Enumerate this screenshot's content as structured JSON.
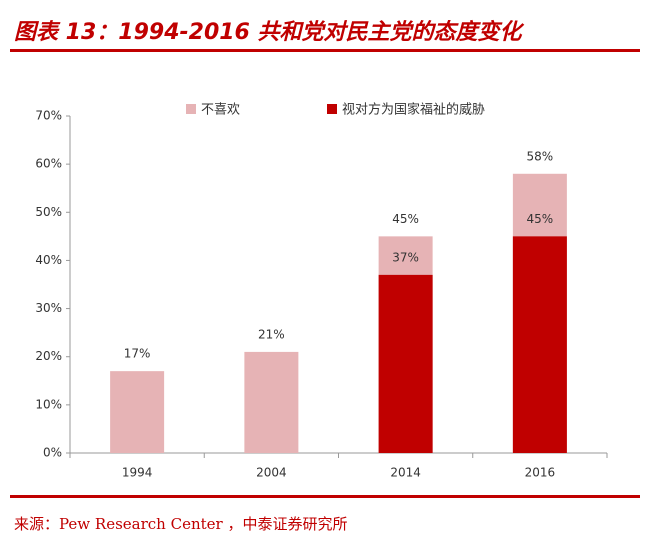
{
  "chart_data": {
    "type": "bar",
    "title": "图表 13：1994-2016 共和党对民主党的态度变化",
    "source": "来源：Pew Research Center ，中泰证券研究所",
    "categories": [
      "1994",
      "2004",
      "2014",
      "2016"
    ],
    "series": [
      {
        "name": "不喜欢",
        "color": "#e6b3b5",
        "values": [
          17,
          21,
          45,
          58
        ],
        "value_labels": [
          "17%",
          "21%",
          "45%",
          "58%"
        ]
      },
      {
        "name": "视对方为国家福祉的威胁",
        "color": "#c00000",
        "values": [
          null,
          null,
          37,
          45
        ],
        "value_labels": [
          null,
          null,
          "37%",
          "45%"
        ]
      }
    ],
    "ylim": [
      0,
      70
    ],
    "yticks": [
      {
        "value": 0,
        "label": "0%"
      },
      {
        "value": 10,
        "label": "10%"
      },
      {
        "value": 20,
        "label": "20%"
      },
      {
        "value": 30,
        "label": "30%"
      },
      {
        "value": 40,
        "label": "40%"
      },
      {
        "value": 50,
        "label": "50%"
      },
      {
        "value": 60,
        "label": "60%"
      },
      {
        "value": 70,
        "label": "70%"
      }
    ],
    "grid": false,
    "overlap": true
  }
}
